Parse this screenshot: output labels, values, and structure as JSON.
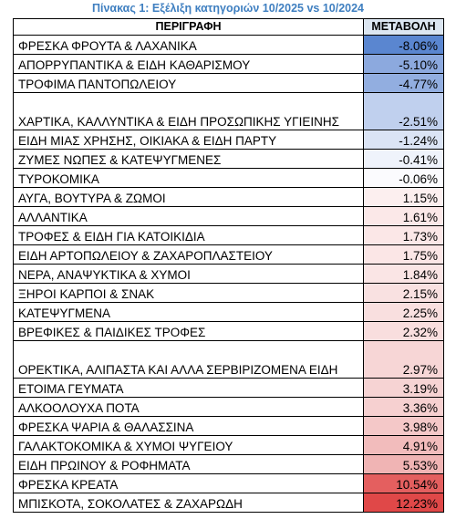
{
  "title": "Πίνακας 1: Εξέλιξη κατηγοριών 10/2025 vs 10/2024",
  "columns": [
    "ΠΕΡΙΓΡΑΦΗ",
    "ΜΕΤΑΒΟΛΗ"
  ],
  "rows": [
    {
      "label": "ΦΡΕΣΚΑ ΦΡΟΥΤΑ & ΛΑΧΑΝΙΚΑ",
      "value": "-8.06%",
      "color": "#5a86d0"
    },
    {
      "label": "ΑΠΟΡΡΥΠΑΝΤΙΚΑ & ΕΙΔΗ ΚΑΘΑΡΙΣΜΟΥ",
      "value": "-5.10%",
      "color": "#8ca9de"
    },
    {
      "label": "ΤΡΟΦΙΜΑ ΠΑΝΤΟΠΩΛΕΙΟΥ",
      "value": "-4.77%",
      "color": "#92aee0"
    },
    {
      "label": "ΧΑΡΤΙΚΑ, ΚΑΛΛΥΝΤΙΚΑ & ΕΙΔΗ ΠΡΟΣΩΠΙΚΗΣ ΥΓΙΕΙΝΗΣ",
      "value": "-2.51%",
      "color": "#c0d0ee"
    },
    {
      "label": "ΕΙΔΗ ΜΙΑΣ ΧΡΗΣΗΣ, ΟΙΚΙΑΚΑ & ΕΙΔΗ ΠΑΡΤΥ",
      "value": "-1.24%",
      "color": "#dbe4f5"
    },
    {
      "label": "ΖΥΜΕΣ ΝΩΠΕΣ & ΚΑΤΕΨΥΓΜΕΝΕΣ",
      "value": "-0.41%",
      "color": "#eff3fb"
    },
    {
      "label": "ΤΥΡΟΚΟΜΙΚΑ",
      "value": "-0.06%",
      "color": "#fbfbfe"
    },
    {
      "label": "ΑΥΓΑ, ΒΟΥΤΥΡΑ & ΖΩΜΟΙ",
      "value": "1.15%",
      "color": "#fcefef"
    },
    {
      "label": "ΑΛΛΑΝΤΙΚΑ",
      "value": "1.61%",
      "color": "#fbe8e8"
    },
    {
      "label": "ΤΡΟΦΕΣ & ΕΙΔΗ ΓΙΑ ΚΑΤΟΙΚΙΔΙΑ",
      "value": "1.73%",
      "color": "#fbe7e7"
    },
    {
      "label": "ΕΙΔΗ ΑΡΤΟΠΩΛΕΙΟΥ & ΖΑΧΑΡΟΠΛΑΣΤΕΙΟΥ",
      "value": "1.75%",
      "color": "#fbe6e6"
    },
    {
      "label": "ΝΕΡΑ, ΑΝΑΨΥΚΤΙΚΑ & ΧΥΜΟΙ",
      "value": "1.84%",
      "color": "#fae5e5"
    },
    {
      "label": "ΞΗΡΟΙ ΚΑΡΠΟΙ & ΣΝΑΚ",
      "value": "2.15%",
      "color": "#f9e1e1"
    },
    {
      "label": "ΚΑΤΕΨΥΓΜΕΝΑ",
      "value": "2.25%",
      "color": "#f9dfdf"
    },
    {
      "label": "ΒΡΕΦΙΚΕΣ & ΠΑΙΔΙΚΕΣ ΤΡΟΦΕΣ",
      "value": "2.32%",
      "color": "#f9dede"
    },
    {
      "label": "ΟΡΕΚΤΙΚΑ, ΑΛΙΠΑΣΤΑ ΚΑΙ ΑΛΛΑ ΣΕΡΒΙΡΙΖΟΜΕΝΑ ΕΙΔΗ",
      "value": "2.97%",
      "color": "#f7d6d6"
    },
    {
      "label": "ΕΤΟΙΜΑ ΓΕΥΜΑΤΑ",
      "value": "3.19%",
      "color": "#f6d3d3"
    },
    {
      "label": "ΑΛΚΟΟΛΟΥΧΑ ΠΟΤΑ",
      "value": "3.36%",
      "color": "#f6d0d0"
    },
    {
      "label": "ΦΡΕΣΚΑ ΨΑΡΙΑ & ΘΑΛΑΣΣΙΝΑ",
      "value": "3.98%",
      "color": "#f4c8c8"
    },
    {
      "label": "ΓΑΛΑΚΤΟΚΟΜΙΚΑ & ΧΥΜΟΙ ΨΥΓΕΙΟΥ",
      "value": "4.91%",
      "color": "#f2bcbc"
    },
    {
      "label": "ΕΙΔΗ ΠΡΩΙΝΟΥ & ΡΟΦΗΜΑΤΑ",
      "value": "5.53%",
      "color": "#f0b4b4"
    },
    {
      "label": "ΦΡΕΣΚΑ ΚΡΕΑΤΑ",
      "value": "10.54%",
      "color": "#e45f5f"
    },
    {
      "label": "ΜΠΙΣΚΟΤΑ, ΣΟΚΟΛΑΤΕΣ & ΖΑΧΑΡΩΔΗ",
      "value": "12.23%",
      "color": "#e04848"
    }
  ]
}
